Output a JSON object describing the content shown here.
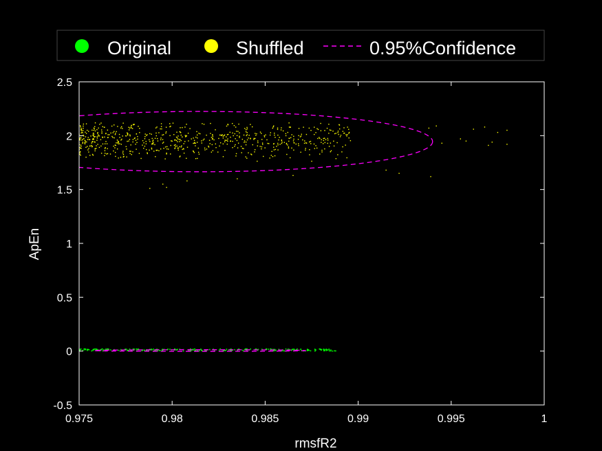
{
  "chart_data": {
    "type": "scatter",
    "title": "",
    "xlabel": "rmsfR2",
    "ylabel": "ApEn",
    "xlim": [
      0.975,
      1
    ],
    "ylim": [
      -0.5,
      2.5
    ],
    "xticks": [
      "0.975",
      "0.98",
      "0.985",
      "0.99",
      "0.995",
      "1"
    ],
    "yticks": [
      "-0.5",
      "0",
      "0.5",
      "1",
      "1.5",
      "2",
      "2.5"
    ],
    "grid": false,
    "legend_position": "top",
    "background": "#000000",
    "axes_color": "#ffffff",
    "series": [
      {
        "name": "Original",
        "marker": "dot",
        "color": "#00ff00",
        "x_range": [
          0.975,
          0.9888
        ],
        "y_range": [
          0.0,
          0.02
        ],
        "count": 260
      },
      {
        "name": "Shuffled",
        "marker": "dot",
        "color": "#ffff00",
        "x_range": [
          0.975,
          0.998
        ],
        "y_range": [
          1.5,
          2.12
        ],
        "count": 700,
        "outliers": [
          [
            0.9955,
            1.97
          ],
          [
            0.9962,
            2.06
          ],
          [
            0.9968,
            2.08
          ],
          [
            0.997,
            1.91
          ],
          [
            0.9972,
            1.94
          ],
          [
            0.9975,
            2.03
          ],
          [
            0.998,
            2.05
          ],
          [
            0.998,
            1.92
          ],
          [
            0.9958,
            1.95
          ],
          [
            0.9939,
            1.62
          ],
          [
            0.9938,
            2.07
          ],
          [
            0.9945,
            1.93
          ],
          [
            0.9942,
            2.09
          ],
          [
            0.9922,
            1.65
          ],
          [
            0.9915,
            1.68
          ]
        ]
      }
    ],
    "confidence_ellipses": [
      {
        "name": "0.95%Confidence",
        "color": "#ff00ff",
        "style": "dashed",
        "center": [
          0.9815,
          1.945
        ],
        "radius_x": 0.0125,
        "radius_y": 0.28
      },
      {
        "name": "0.95%Confidence",
        "color": "#ff00ff",
        "style": "dashed",
        "center": [
          0.9815,
          0.005
        ],
        "radius_x": 0.0057,
        "radius_y": 0.007
      }
    ],
    "legend": [
      "Original",
      "Shuffled",
      "0.95%Confidence"
    ]
  }
}
